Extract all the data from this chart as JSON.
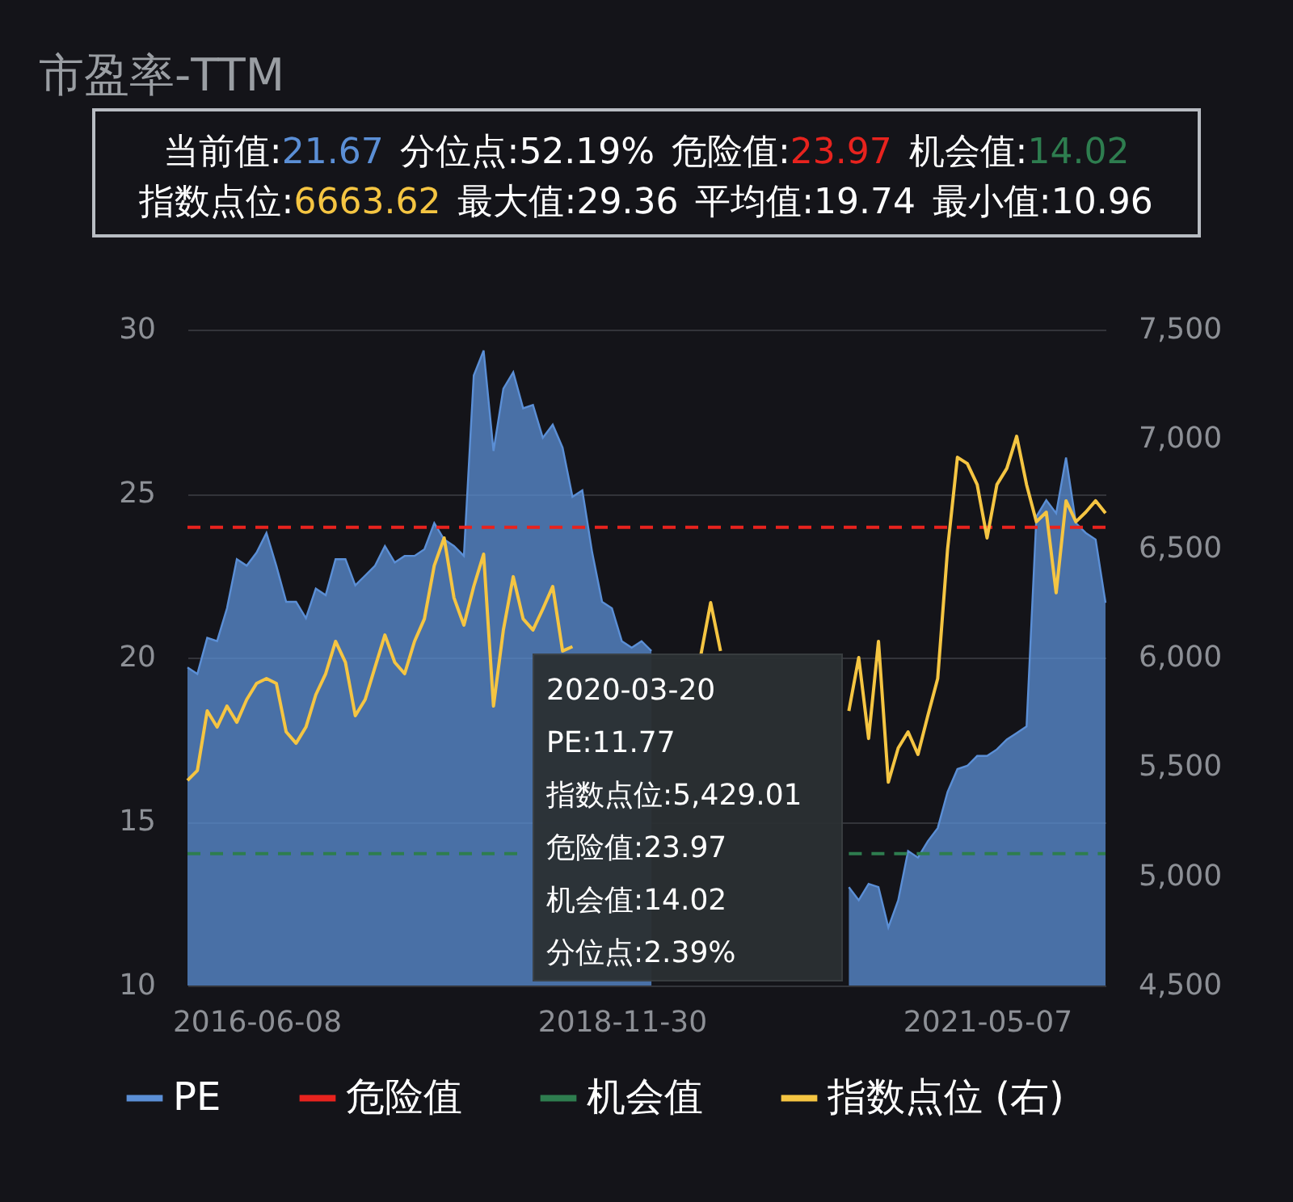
{
  "chart_data": {
    "type": "area",
    "title": "市盈率-TTM",
    "categories": [
      null,
      null,
      null,
      null,
      null,
      null,
      null,
      "2016-06-08",
      null,
      null,
      null,
      null,
      null,
      null,
      null,
      null,
      null,
      null,
      null,
      null,
      null,
      null,
      null,
      null,
      null,
      null,
      null,
      null,
      null,
      null,
      null,
      null,
      null,
      null,
      null,
      null,
      null,
      null,
      null,
      null,
      null,
      null,
      null,
      null,
      "2018-11-30",
      null,
      null,
      null,
      null,
      null,
      null,
      null,
      null,
      null,
      null,
      null,
      null,
      null,
      null,
      null,
      null,
      null,
      null,
      null,
      null,
      null,
      null,
      null,
      null,
      null,
      null,
      null,
      null,
      null,
      null,
      null,
      null,
      null,
      null,
      null,
      null,
      "2021-05-07",
      null,
      null,
      null,
      null,
      null,
      null,
      null,
      null,
      null,
      null,
      null,
      null
    ],
    "series": [
      {
        "name": "PE",
        "color": "#5b8fd6",
        "values": [
          19.7,
          19.5,
          20.6,
          20.5,
          21.5,
          23.0,
          22.8,
          23.2,
          23.8,
          22.8,
          21.7,
          21.7,
          21.2,
          22.1,
          21.9,
          23.0,
          23.0,
          22.2,
          22.5,
          22.8,
          23.4,
          22.9,
          23.1,
          23.1,
          23.3,
          24.1,
          23.6,
          23.4,
          23.1,
          28.6,
          29.36,
          26.3,
          28.2,
          28.7,
          27.6,
          27.7,
          26.7,
          27.1,
          26.4,
          24.9,
          25.1,
          23.2,
          21.7,
          21.5,
          20.5,
          20.3,
          20.5,
          20.2,
          null,
          null,
          null,
          null,
          null,
          null,
          null,
          null,
          null,
          null,
          null,
          null,
          null,
          null,
          null,
          null,
          null,
          null,
          null,
          13.0,
          12.6,
          13.1,
          13.0,
          11.77,
          12.6,
          14.1,
          13.9,
          14.4,
          14.8,
          15.9,
          16.6,
          16.7,
          17.0,
          17.0,
          17.2,
          17.5,
          17.7,
          17.9,
          24.3,
          24.8,
          24.4,
          26.1,
          24.1,
          23.8,
          23.6,
          21.67
        ]
      },
      {
        "name": "危险值",
        "type": "line",
        "line_style": "dashed",
        "color": "#e8231e",
        "values": [
          23.97,
          23.97,
          23.97,
          23.97,
          23.97,
          23.97,
          23.97,
          23.97,
          23.97,
          23.97,
          23.97,
          23.97,
          23.97,
          23.97,
          23.97,
          23.97,
          23.97,
          23.97,
          23.97,
          23.97,
          23.97,
          23.97,
          23.97,
          23.97,
          23.97,
          23.97,
          23.97,
          23.97,
          23.97,
          23.97,
          23.97,
          23.97,
          23.97,
          23.97,
          23.97,
          23.97,
          23.97,
          23.97,
          23.97,
          23.97,
          23.97,
          23.97,
          23.97,
          23.97,
          23.97,
          23.97,
          23.97,
          23.97,
          23.97,
          23.97,
          23.97,
          23.97,
          23.97,
          23.97,
          23.97,
          23.97,
          23.97,
          23.97,
          23.97,
          23.97,
          23.97,
          23.97,
          23.97,
          23.97,
          23.97,
          23.97,
          23.97,
          23.97,
          23.97,
          23.97,
          23.97,
          23.97,
          23.97,
          23.97,
          23.97,
          23.97,
          23.97,
          23.97,
          23.97,
          23.97,
          23.97,
          23.97,
          23.97,
          23.97,
          23.97,
          23.97,
          23.97,
          23.97,
          23.97,
          23.97,
          23.97,
          23.97,
          23.97,
          23.97
        ]
      },
      {
        "name": "机会值",
        "type": "line",
        "line_style": "dashed",
        "color": "#2e7d4f",
        "values": [
          14.02,
          14.02,
          14.02,
          14.02,
          14.02,
          14.02,
          14.02,
          14.02,
          14.02,
          14.02,
          14.02,
          14.02,
          14.02,
          14.02,
          14.02,
          14.02,
          14.02,
          14.02,
          14.02,
          14.02,
          14.02,
          14.02,
          14.02,
          14.02,
          14.02,
          14.02,
          14.02,
          14.02,
          14.02,
          14.02,
          14.02,
          14.02,
          14.02,
          14.02,
          14.02,
          null,
          null,
          null,
          null,
          null,
          null,
          null,
          null,
          null,
          null,
          null,
          null,
          null,
          null,
          null,
          null,
          null,
          null,
          null,
          null,
          null,
          null,
          null,
          null,
          null,
          null,
          null,
          null,
          null,
          null,
          null,
          null,
          14.02,
          14.02,
          14.02,
          14.02,
          14.02,
          14.02,
          14.02,
          14.02,
          14.02,
          14.02,
          14.02,
          14.02,
          14.02,
          14.02,
          14.02,
          14.02,
          14.02,
          14.02,
          14.02,
          14.02,
          14.02,
          14.02,
          14.02,
          14.02,
          14.02,
          14.02,
          14.02
        ]
      },
      {
        "name": "指数点位 (右)",
        "type": "line",
        "axis": "y2",
        "color": "#f5c542",
        "values": [
          5438,
          5483,
          5756,
          5682,
          5778,
          5704,
          5808,
          5882,
          5904,
          5882,
          5660,
          5608,
          5682,
          5830,
          5926,
          6074,
          5978,
          5734,
          5808,
          5956,
          6103,
          5978,
          5926,
          6074,
          6177,
          6421,
          6547,
          6273,
          6148,
          6325,
          6473,
          5778,
          6126,
          6370,
          6177,
          6126,
          6222,
          6325,
          6030,
          6050,
          null,
          null,
          null,
          null,
          null,
          null,
          null,
          null,
          null,
          null,
          null,
          null,
          6010,
          6251,
          6030,
          null,
          null,
          null,
          null,
          null,
          null,
          null,
          null,
          null,
          null,
          null,
          null,
          5756,
          6000,
          5630,
          6074,
          5430,
          5586,
          5660,
          5557,
          5734,
          5904,
          6495,
          6916,
          6887,
          6791,
          6547,
          6791,
          6865,
          7012,
          6791,
          6621,
          6665,
          6296,
          6717,
          6621,
          6665,
          6717,
          6660
        ]
      }
    ],
    "ylim": [
      10,
      30
    ],
    "yticks": [
      10,
      15,
      20,
      25,
      30
    ],
    "y2lim": [
      4500,
      7500
    ],
    "y2ticks": [
      {
        "value": 4500,
        "label": "4,500"
      },
      {
        "value": 5000,
        "label": "5,000"
      },
      {
        "value": 5500,
        "label": "5,500"
      },
      {
        "value": 6000,
        "label": "6,000"
      },
      {
        "value": 6500,
        "label": "6,500"
      },
      {
        "value": 7000,
        "label": "7,000"
      },
      {
        "value": 7500,
        "label": "7,500"
      }
    ],
    "grid": "y",
    "legend": "bottom",
    "annotations": [
      "当前值:21.67",
      "分位点:52.19%",
      "危险值:23.97",
      "机会值:14.02",
      "指数点位:6663.62",
      "最大值:29.36",
      "平均值:19.74",
      "最小值:10.96",
      "2020-03-20",
      "PE:11.77",
      "指数点位:5,429.01",
      "危险值:23.97",
      "机会值:14.02",
      "分位点:2.39%"
    ]
  }
}
